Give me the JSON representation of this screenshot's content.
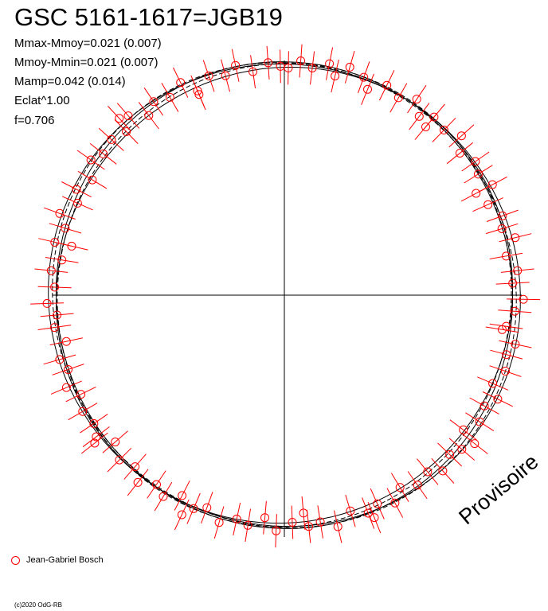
{
  "title": "GSC 5161-1617=JGB19",
  "stats": {
    "mmax_mmoy": "Mmax-Mmoy=0.021 (0.007)",
    "mmoy_mmin": "Mmoy-Mmin=0.021 (0.007)",
    "mamp": "Mamp=0.042 (0.014)",
    "eclat": "Eclat^1.00",
    "f": "f=0.706"
  },
  "legend": {
    "observer": "Jean-Gabriel Bosch"
  },
  "watermark": "Provisoire",
  "copyright": "(c)2020 OdG-RB",
  "colors": {
    "points": "#ff0000",
    "curve": "#000000",
    "axes": "#000000"
  },
  "chart_data": {
    "type": "scatter",
    "coordinate_system": "polar",
    "title": "GSC 5161-1617=JGB19",
    "observer": "Jean-Gabriel Bosch",
    "reference_radius": 1.0,
    "rlim": [
      0,
      1.08
    ],
    "model_curve": {
      "offsets": [
        -0.012,
        -0.006,
        0,
        0.006,
        0.012
      ],
      "amplitude": 0.013
    },
    "points": [
      {
        "theta": 1,
        "r": 0.985
      },
      {
        "theta": 4,
        "r": 1.018
      },
      {
        "theta": 7,
        "r": 0.992
      },
      {
        "theta": 11,
        "r": 1.022
      },
      {
        "theta": 13,
        "r": 0.975
      },
      {
        "theta": 16,
        "r": 1.028
      },
      {
        "theta": 20,
        "r": 1.005
      },
      {
        "theta": 22,
        "r": 0.962
      },
      {
        "theta": 26,
        "r": 1.012
      },
      {
        "theta": 30,
        "r": 0.988
      },
      {
        "theta": 34,
        "r": 1.025
      },
      {
        "theta": 37,
        "r": 0.97
      },
      {
        "theta": 40,
        "r": 1.008
      },
      {
        "theta": 44,
        "r": 0.995
      },
      {
        "theta": 48,
        "r": 1.032
      },
      {
        "theta": 51,
        "r": 0.978
      },
      {
        "theta": 55,
        "r": 1.01
      },
      {
        "theta": 58,
        "r": 0.99
      },
      {
        "theta": 62,
        "r": 1.02
      },
      {
        "theta": 66,
        "r": 0.965
      },
      {
        "theta": 70,
        "r": 1.005
      },
      {
        "theta": 73,
        "r": 0.985
      },
      {
        "theta": 76,
        "r": 1.03
      },
      {
        "theta": 80,
        "r": 0.975
      },
      {
        "theta": 84,
        "r": 1.015
      },
      {
        "theta": 87,
        "r": 0.99
      },
      {
        "theta": 91,
        "r": 1.035
      },
      {
        "theta": 94,
        "r": 1.0
      },
      {
        "theta": 98,
        "r": 0.97
      },
      {
        "theta": 102,
        "r": 1.022
      },
      {
        "theta": 105,
        "r": 0.995
      },
      {
        "theta": 109,
        "r": 1.012
      },
      {
        "theta": 113,
        "r": 0.98
      },
      {
        "theta": 116,
        "r": 1.028
      },
      {
        "theta": 119,
        "r": 0.99
      },
      {
        "theta": 123,
        "r": 1.008
      },
      {
        "theta": 127,
        "r": 0.97
      },
      {
        "theta": 131,
        "r": 1.018
      },
      {
        "theta": 134,
        "r": 0.995
      },
      {
        "theta": 138,
        "r": 1.025
      },
      {
        "theta": 141,
        "r": 0.985
      },
      {
        "theta": 145,
        "r": 1.005
      },
      {
        "theta": 149,
        "r": 0.972
      },
      {
        "theta": 152,
        "r": 1.02
      },
      {
        "theta": 156,
        "r": 0.99
      },
      {
        "theta": 159,
        "r": 1.012
      },
      {
        "theta": 163,
        "r": 0.978
      },
      {
        "theta": 167,
        "r": 1.03
      },
      {
        "theta": 171,
        "r": 0.995
      },
      {
        "theta": 174,
        "r": 1.008
      },
      {
        "theta": 178,
        "r": 0.985
      },
      {
        "theta": 182,
        "r": 1.022
      },
      {
        "theta": 185,
        "r": 0.968
      },
      {
        "theta": 189,
        "r": 1.01
      },
      {
        "theta": 192,
        "r": 0.992
      },
      {
        "theta": 196,
        "r": 1.025
      },
      {
        "theta": 200,
        "r": 0.98
      },
      {
        "theta": 203,
        "r": 1.005
      },
      {
        "theta": 207,
        "r": 0.975
      },
      {
        "theta": 211,
        "r": 1.018
      },
      {
        "theta": 214,
        "r": 0.99
      },
      {
        "theta": 218,
        "r": 1.03
      },
      {
        "theta": 221,
        "r": 0.985
      },
      {
        "theta": 225,
        "r": 1.01
      },
      {
        "theta": 229,
        "r": 0.97
      },
      {
        "theta": 233,
        "r": 1.02
      },
      {
        "theta": 236,
        "r": 0.995
      },
      {
        "theta": 240,
        "r": 1.008
      },
      {
        "theta": 244,
        "r": 0.98
      },
      {
        "theta": 247,
        "r": 1.025
      },
      {
        "theta": 251,
        "r": 0.99
      },
      {
        "theta": 254,
        "r": 1.012
      },
      {
        "theta": 258,
        "r": 0.965
      },
      {
        "theta": 262,
        "r": 1.005
      },
      {
        "theta": 265,
        "r": 0.988
      },
      {
        "theta": 268,
        "r": 1.028
      },
      {
        "theta": 272,
        "r": 0.995
      },
      {
        "theta": 276,
        "r": 1.015
      },
      {
        "theta": 279,
        "r": 0.975
      },
      {
        "theta": 283,
        "r": 1.02
      },
      {
        "theta": 287,
        "r": 0.992
      },
      {
        "theta": 290,
        "r": 1.035
      },
      {
        "theta": 294,
        "r": 0.98
      },
      {
        "theta": 297,
        "r": 1.01
      },
      {
        "theta": 301,
        "r": 0.97
      },
      {
        "theta": 305,
        "r": 1.022
      },
      {
        "theta": 308,
        "r": 0.995
      },
      {
        "theta": 312,
        "r": 1.008
      },
      {
        "theta": 316,
        "r": 0.985
      },
      {
        "theta": 319,
        "r": 1.03
      },
      {
        "theta": 323,
        "r": 0.975
      },
      {
        "theta": 326,
        "r": 1.012
      },
      {
        "theta": 330,
        "r": 0.99
      },
      {
        "theta": 334,
        "r": 1.025
      },
      {
        "theta": 337,
        "r": 0.962
      },
      {
        "theta": 341,
        "r": 1.005
      },
      {
        "theta": 345,
        "r": 0.985
      },
      {
        "theta": 348,
        "r": 1.018
      },
      {
        "theta": 352,
        "r": 0.978
      },
      {
        "theta": 356,
        "r": 1.01
      },
      {
        "theta": 359,
        "r": 0.992
      },
      {
        "theta": 40,
        "r": 0.952
      },
      {
        "theta": 128,
        "r": 1.045
      },
      {
        "theta": 175,
        "r": 0.948
      },
      {
        "theta": 232,
        "r": 1.042
      },
      {
        "theta": 283,
        "r": 0.945
      },
      {
        "theta": 317,
        "r": 1.048
      },
      {
        "theta": 62,
        "r": 0.94
      },
      {
        "theta": 205,
        "r": 1.05
      },
      {
        "theta": 99,
        "r": 0.955
      },
      {
        "theta": 337,
        "r": 0.945
      },
      {
        "theta": 158,
        "r": 1.04
      }
    ]
  }
}
